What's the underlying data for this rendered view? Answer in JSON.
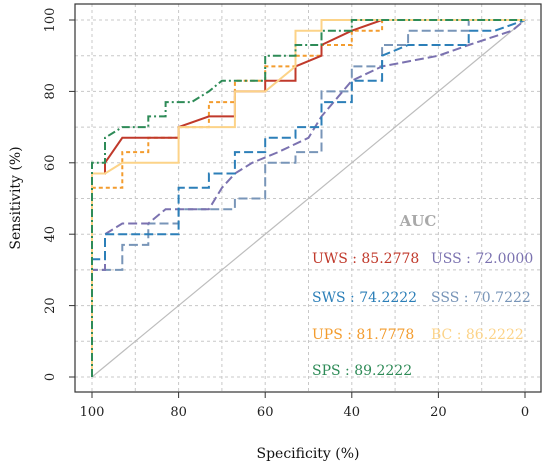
{
  "chart_data": {
    "type": "line",
    "title": "",
    "xlabel": "Specificity (%)",
    "ylabel": "Sensitivity (%)",
    "xlim": [
      100,
      0
    ],
    "ylim": [
      0,
      100
    ],
    "x_reversed": true,
    "xticks": [
      100,
      80,
      60,
      40,
      20,
      0
    ],
    "yticks": [
      0,
      20,
      40,
      60,
      80,
      100
    ],
    "grid": true,
    "legend_title": "AUC",
    "legend_position": "bottom-right",
    "diagonal_color": "#bdbdbd",
    "series": [
      {
        "name": "SSS",
        "auc_label": "SSS : 70.7222",
        "color": "#7895b8",
        "dash": "long-dash",
        "points": [
          [
            100,
            0
          ],
          [
            100,
            30
          ],
          [
            93,
            30
          ],
          [
            93,
            37
          ],
          [
            87,
            37
          ],
          [
            87,
            43
          ],
          [
            80,
            43
          ],
          [
            80,
            47
          ],
          [
            67,
            47
          ],
          [
            67,
            50
          ],
          [
            60,
            50
          ],
          [
            60,
            60
          ],
          [
            53,
            60
          ],
          [
            53,
            63
          ],
          [
            47,
            63
          ],
          [
            47,
            73
          ],
          [
            47,
            80
          ],
          [
            40,
            80
          ],
          [
            40,
            87
          ],
          [
            33,
            87
          ],
          [
            33,
            93
          ],
          [
            27,
            93
          ],
          [
            27,
            97
          ],
          [
            13,
            97
          ],
          [
            13,
            100
          ],
          [
            0,
            100
          ]
        ]
      },
      {
        "name": "USS",
        "auc_label": "USS : 72.0000",
        "color": "#7b72b0",
        "dash": "long-dash",
        "points": [
          [
            100,
            0
          ],
          [
            100,
            30
          ],
          [
            97,
            30
          ],
          [
            97,
            40
          ],
          [
            93,
            43
          ],
          [
            87,
            43
          ],
          [
            83,
            47
          ],
          [
            73,
            47
          ],
          [
            70,
            53
          ],
          [
            67,
            57
          ],
          [
            63,
            60
          ],
          [
            57,
            63
          ],
          [
            50,
            67
          ],
          [
            47,
            73
          ],
          [
            40,
            83
          ],
          [
            33,
            87
          ],
          [
            20,
            90
          ],
          [
            13,
            93
          ],
          [
            3,
            97
          ],
          [
            0,
            100
          ]
        ]
      },
      {
        "name": "SWS",
        "auc_label": "SWS : 74.2222",
        "color": "#2c7fb8",
        "dash": "long-dash",
        "points": [
          [
            100,
            0
          ],
          [
            100,
            33
          ],
          [
            97,
            33
          ],
          [
            97,
            40
          ],
          [
            80,
            40
          ],
          [
            80,
            53
          ],
          [
            73,
            53
          ],
          [
            73,
            57
          ],
          [
            67,
            57
          ],
          [
            67,
            63
          ],
          [
            60,
            63
          ],
          [
            60,
            67
          ],
          [
            53,
            67
          ],
          [
            53,
            70
          ],
          [
            47,
            70
          ],
          [
            47,
            77
          ],
          [
            40,
            77
          ],
          [
            40,
            83
          ],
          [
            33,
            83
          ],
          [
            33,
            90
          ],
          [
            27,
            93
          ],
          [
            13,
            93
          ],
          [
            13,
            97
          ],
          [
            7,
            97
          ],
          [
            0,
            100
          ]
        ]
      },
      {
        "name": "UPS",
        "auc_label": "UPS : 81.7778",
        "color": "#f39c2e",
        "dash": "short-dash",
        "points": [
          [
            100,
            0
          ],
          [
            100,
            53
          ],
          [
            93,
            53
          ],
          [
            93,
            63
          ],
          [
            87,
            63
          ],
          [
            87,
            67
          ],
          [
            80,
            67
          ],
          [
            80,
            70
          ],
          [
            73,
            70
          ],
          [
            73,
            77
          ],
          [
            67,
            77
          ],
          [
            67,
            83
          ],
          [
            60,
            83
          ],
          [
            60,
            87
          ],
          [
            53,
            87
          ],
          [
            53,
            90
          ],
          [
            47,
            90
          ],
          [
            47,
            93
          ],
          [
            40,
            93
          ],
          [
            40,
            97
          ],
          [
            33,
            97
          ],
          [
            33,
            100
          ],
          [
            0,
            100
          ]
        ]
      },
      {
        "name": "UWS",
        "auc_label": "UWS : 85.2778",
        "color": "#c0392b",
        "dash": "solid",
        "points": [
          [
            100,
            0
          ],
          [
            100,
            57
          ],
          [
            97,
            57
          ],
          [
            97,
            60
          ],
          [
            93,
            67
          ],
          [
            80,
            67
          ],
          [
            80,
            70
          ],
          [
            73,
            73
          ],
          [
            67,
            73
          ],
          [
            67,
            80
          ],
          [
            60,
            80
          ],
          [
            60,
            83
          ],
          [
            53,
            83
          ],
          [
            53,
            87
          ],
          [
            47,
            90
          ],
          [
            47,
            93
          ],
          [
            40,
            97
          ],
          [
            33,
            100
          ],
          [
            0,
            100
          ]
        ]
      },
      {
        "name": "BC",
        "auc_label": "BC : 86.2222",
        "color": "#fcd388",
        "dash": "solid",
        "points": [
          [
            100,
            0
          ],
          [
            100,
            57
          ],
          [
            97,
            57
          ],
          [
            93,
            60
          ],
          [
            80,
            60
          ],
          [
            80,
            70
          ],
          [
            67,
            70
          ],
          [
            67,
            80
          ],
          [
            60,
            80
          ],
          [
            53,
            87
          ],
          [
            53,
            97
          ],
          [
            47,
            97
          ],
          [
            47,
            100
          ],
          [
            0,
            100
          ]
        ]
      },
      {
        "name": "SPS",
        "auc_label": "SPS : 89.2222",
        "color": "#2e8b57",
        "dash": "dash-dot",
        "points": [
          [
            100,
            0
          ],
          [
            100,
            60
          ],
          [
            97,
            60
          ],
          [
            97,
            67
          ],
          [
            93,
            70
          ],
          [
            87,
            70
          ],
          [
            87,
            73
          ],
          [
            83,
            73
          ],
          [
            83,
            77
          ],
          [
            77,
            77
          ],
          [
            73,
            80
          ],
          [
            70,
            83
          ],
          [
            60,
            83
          ],
          [
            60,
            90
          ],
          [
            53,
            90
          ],
          [
            53,
            93
          ],
          [
            47,
            93
          ],
          [
            47,
            97
          ],
          [
            40,
            97
          ],
          [
            40,
            100
          ],
          [
            0,
            100
          ]
        ]
      }
    ]
  }
}
